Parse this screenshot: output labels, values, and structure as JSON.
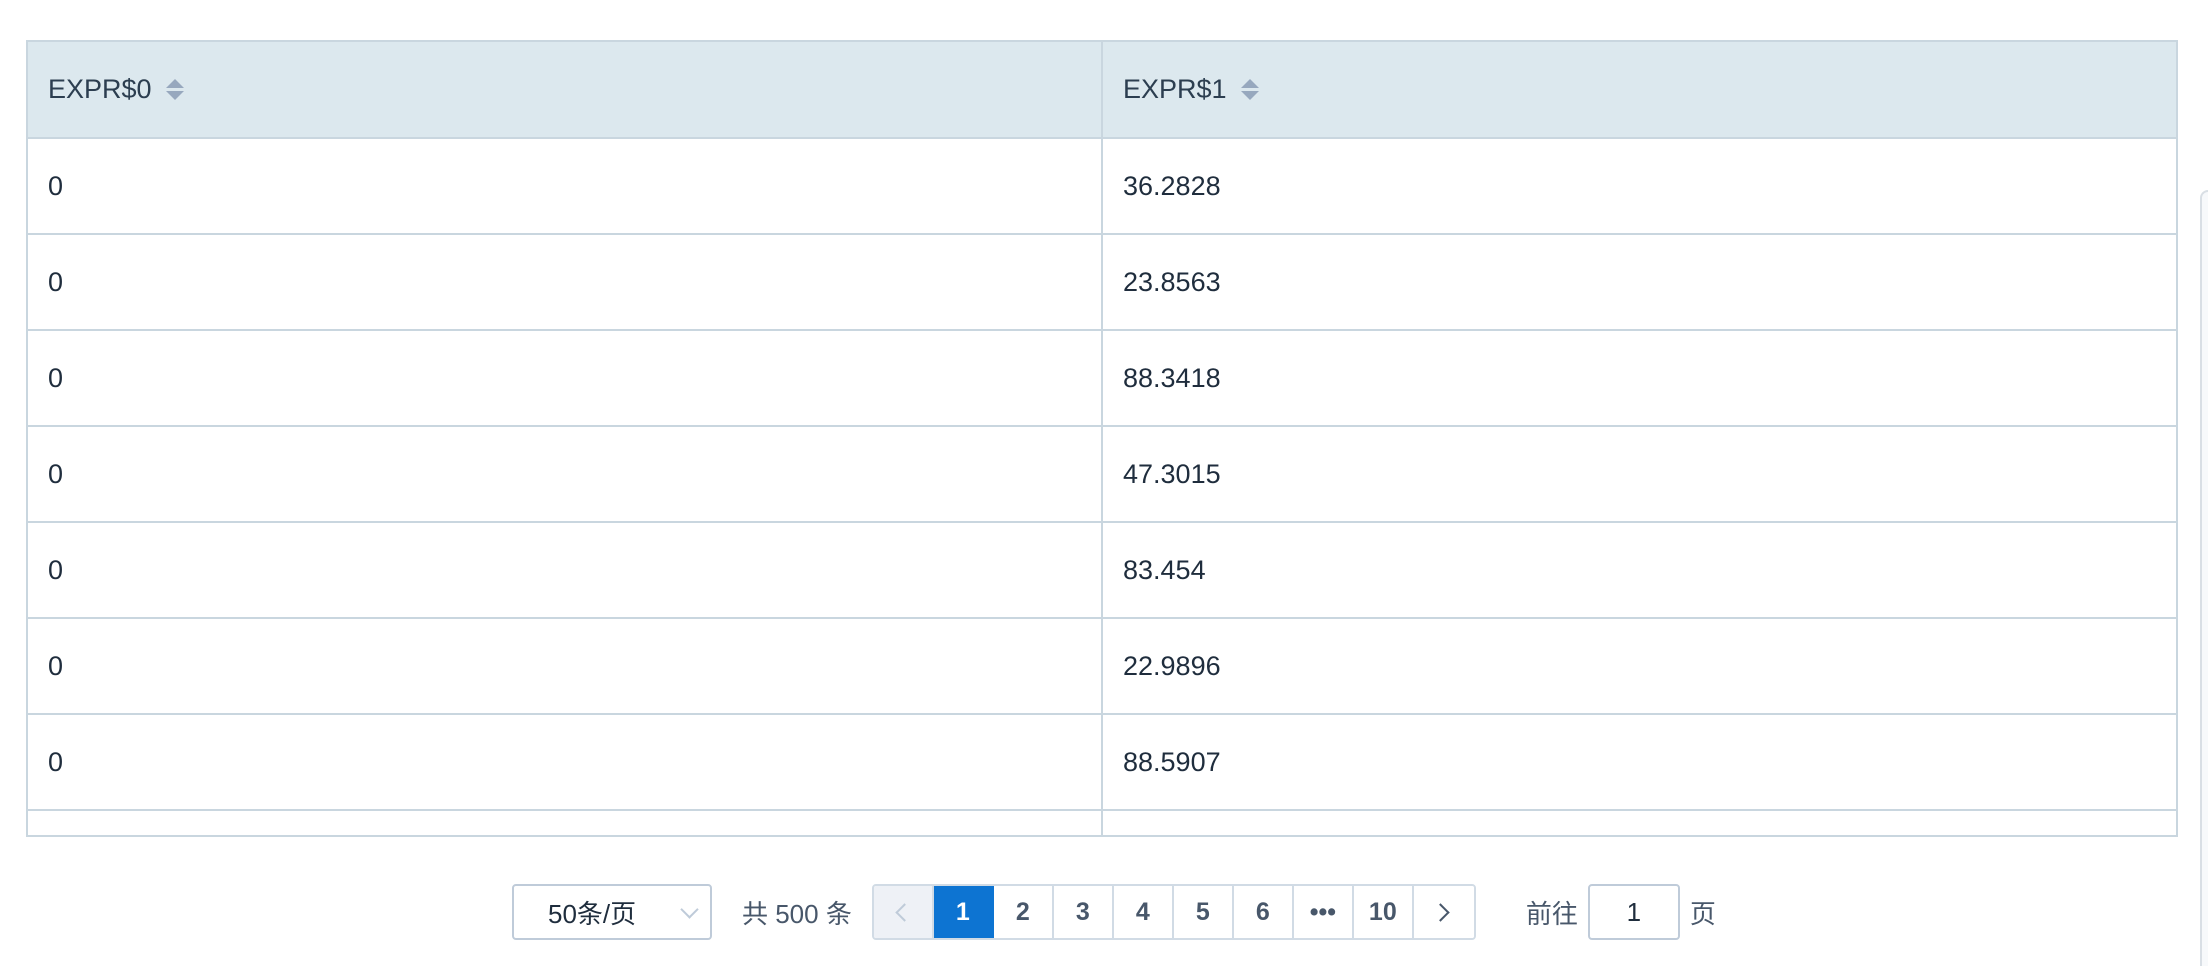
{
  "table": {
    "columns": [
      {
        "label": "EXPR$0"
      },
      {
        "label": "EXPR$1"
      }
    ],
    "rows": [
      [
        "0",
        "36.2828"
      ],
      [
        "0",
        "23.8563"
      ],
      [
        "0",
        "88.3418"
      ],
      [
        "0",
        "47.3015"
      ],
      [
        "0",
        "83.454"
      ],
      [
        "0",
        "22.9896"
      ],
      [
        "0",
        "88.5907"
      ]
    ]
  },
  "pagination": {
    "page_size_label": "50条/页",
    "total_label": "共 500 条",
    "pages": [
      "1",
      "2",
      "3",
      "4",
      "5",
      "6",
      "•••",
      "10"
    ],
    "current_page": "1",
    "goto_prefix": "前往",
    "goto_value": "1",
    "goto_suffix": "页"
  }
}
